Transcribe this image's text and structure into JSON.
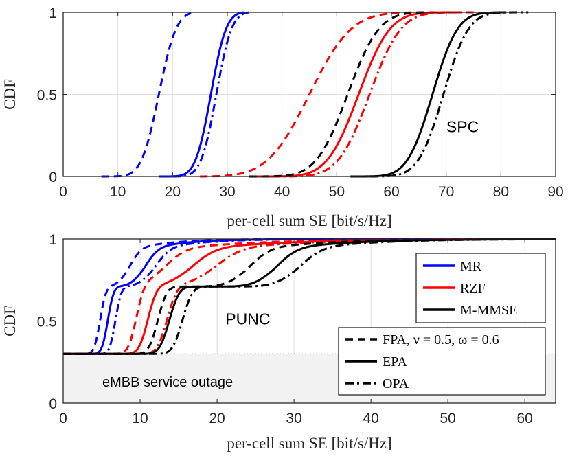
{
  "chart_data": [
    {
      "type": "line",
      "title": "",
      "xlabel": "per-cell sum SE [bit/s/Hz]",
      "ylabel": "CDF",
      "xlim": [
        0,
        90
      ],
      "ylim": [
        0,
        1
      ],
      "xticks": [
        "0",
        "10",
        "20",
        "30",
        "40",
        "50",
        "60",
        "70",
        "80",
        "90"
      ],
      "yticks": [
        "0",
        "0.5",
        "1"
      ],
      "grid": true,
      "annotation": "SPC",
      "series": [
        {
          "name": "MR FPA",
          "color": "#0000ff",
          "dash": "dashed",
          "mu": 17.5,
          "sigma": 2.5,
          "lo": 7,
          "hi": 24
        },
        {
          "name": "MR EPA",
          "color": "#0000ff",
          "dash": "solid",
          "mu": 27,
          "sigma": 2.2,
          "lo": 17.5,
          "hi": 33
        },
        {
          "name": "MR OPA",
          "color": "#0000ff",
          "dash": "dashdot",
          "mu": 28,
          "sigma": 2.2,
          "lo": 20,
          "hi": 34
        },
        {
          "name": "RZF FPA",
          "color": "#ff0000",
          "dash": "dashed",
          "mu": 45,
          "sigma": 6,
          "lo": 25,
          "hi": 75
        },
        {
          "name": "RZF EPA",
          "color": "#ff0000",
          "dash": "solid",
          "mu": 54,
          "sigma": 4.5,
          "lo": 35,
          "hi": 72
        },
        {
          "name": "RZF OPA",
          "color": "#ff0000",
          "dash": "dashdot",
          "mu": 56,
          "sigma": 4.5,
          "lo": 35,
          "hi": 75
        },
        {
          "name": "M-MMSE FPA",
          "color": "#000000",
          "dash": "dashed",
          "mu": 52,
          "sigma": 4.5,
          "lo": 34,
          "hi": 66
        },
        {
          "name": "M-MMSE EPA",
          "color": "#000000",
          "dash": "solid",
          "mu": 67.5,
          "sigma": 3.6,
          "lo": 52.5,
          "hi": 81
        },
        {
          "name": "M-MMSE OPA",
          "color": "#000000",
          "dash": "dashdot",
          "mu": 69.5,
          "sigma": 3.6,
          "lo": 53,
          "hi": 85
        }
      ]
    },
    {
      "type": "line",
      "title": "",
      "xlabel": "per-cell sum SE [bit/s/Hz]",
      "ylabel": "CDF",
      "xlim": [
        0,
        64
      ],
      "ylim": [
        0,
        1
      ],
      "xticks": [
        "0",
        "10",
        "20",
        "30",
        "40",
        "50",
        "60"
      ],
      "yticks": [
        "0",
        "0.5",
        "1"
      ],
      "grid": true,
      "annotation": "PUNC",
      "outage_label": "eMBB service outage",
      "outage_level": 0.3,
      "legend": {
        "position": "right",
        "schemes": [
          {
            "label": "MR",
            "color": "#0000ff"
          },
          {
            "label": "RZF",
            "color": "#ff0000"
          },
          {
            "label": "M-MMSE",
            "color": "#000000"
          }
        ],
        "allocations": [
          {
            "label": "FPA, ν = 0.5, ω = 0.6",
            "dash": "dashed"
          },
          {
            "label": "EPA",
            "dash": "solid"
          },
          {
            "label": "OPA",
            "dash": "dashdot"
          }
        ]
      },
      "series": [
        {
          "name": "MR FPA",
          "color": "#0000ff",
          "dash": "dashed",
          "jump1": 4.8,
          "plateau": 0.71,
          "plat_end": 8.5,
          "x_end": 28,
          "s1": 0.6,
          "s2": 1.2
        },
        {
          "name": "MR EPA",
          "color": "#0000ff",
          "dash": "solid",
          "jump1": 5.8,
          "plateau": 0.71,
          "plat_end": 10.5,
          "x_end": 30,
          "s1": 0.6,
          "s2": 1.4
        },
        {
          "name": "MR OPA",
          "color": "#0000ff",
          "dash": "dashdot",
          "jump1": 6.8,
          "plateau": 0.71,
          "plat_end": 11.8,
          "x_end": 33,
          "s1": 0.6,
          "s2": 1.6
        },
        {
          "name": "RZF FPA",
          "color": "#ff0000",
          "dash": "dashed",
          "jump1": 9.5,
          "plateau": 0.71,
          "plat_end": 13,
          "x_end": 56,
          "s1": 0.8,
          "s2": 2.2
        },
        {
          "name": "RZF EPA",
          "color": "#ff0000",
          "dash": "solid",
          "jump1": 11,
          "plateau": 0.71,
          "plat_end": 16.5,
          "x_end": 60,
          "s1": 0.9,
          "s2": 2.5
        },
        {
          "name": "RZF OPA",
          "color": "#ff0000",
          "dash": "dashdot",
          "jump1": 13.5,
          "plateau": 0.71,
          "plat_end": 19.5,
          "x_end": 62,
          "s1": 1.0,
          "s2": 2.8
        },
        {
          "name": "M-MMSE FPA",
          "color": "#000000",
          "dash": "dashed",
          "jump1": 12.3,
          "plateau": 0.71,
          "plat_end": 24,
          "x_end": 60,
          "s1": 0.9,
          "s2": 2.2
        },
        {
          "name": "M-MMSE EPA",
          "color": "#000000",
          "dash": "solid",
          "jump1": 13.8,
          "plateau": 0.71,
          "plat_end": 27.5,
          "x_end": 62,
          "s1": 1.0,
          "s2": 2.2
        },
        {
          "name": "M-MMSE OPA",
          "color": "#000000",
          "dash": "dashdot",
          "jump1": 15.5,
          "plateau": 0.71,
          "plat_end": 30.5,
          "x_end": 64,
          "s1": 1.0,
          "s2": 2.4
        }
      ]
    }
  ]
}
